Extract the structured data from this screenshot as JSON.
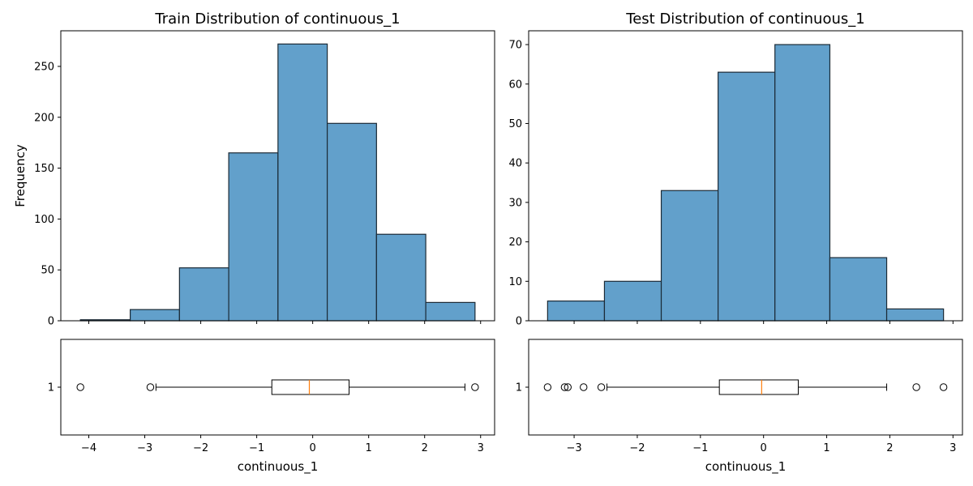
{
  "chart_data": [
    {
      "type": "bar",
      "panel": "top-left",
      "title": "Train Distribution of continuous_1",
      "ylabel": "Frequency",
      "xlabel": "",
      "bin_edges": [
        -4.15,
        -3.26,
        -2.38,
        -1.5,
        -0.62,
        0.26,
        1.14,
        2.02,
        2.9
      ],
      "values": [
        1,
        11,
        52,
        165,
        272,
        194,
        85,
        18
      ],
      "color": "#1f77b4",
      "xlim": [
        -4.5,
        3.25
      ],
      "ylim": [
        0,
        285
      ],
      "yticks": [
        0,
        50,
        100,
        150,
        200,
        250
      ],
      "grid": false
    },
    {
      "type": "bar",
      "panel": "top-right",
      "title": "Test Distribution of continuous_1",
      "xlabel": "",
      "ylabel": "",
      "bin_edges": [
        -3.42,
        -2.52,
        -1.62,
        -0.72,
        0.18,
        1.05,
        1.95,
        2.85
      ],
      "values": [
        5,
        10,
        33,
        63,
        70,
        16,
        3
      ],
      "color": "#1f77b4",
      "xlim": [
        -3.72,
        3.15
      ],
      "ylim": [
        0,
        73.5
      ],
      "yticks": [
        0,
        10,
        20,
        30,
        40,
        50,
        60,
        70
      ],
      "grid": false
    },
    {
      "type": "boxplot",
      "panel": "bottom-left",
      "xlabel": "continuous_1",
      "category": "1",
      "q1": -0.73,
      "median": -0.06,
      "q3": 0.65,
      "whisker_low": -2.8,
      "whisker_high": 2.72,
      "outliers": [
        -4.15,
        -2.9,
        2.9
      ],
      "xlim": [
        -4.5,
        3.25
      ],
      "xticks": [
        -4,
        -3,
        -2,
        -1,
        0,
        1,
        2,
        3
      ]
    },
    {
      "type": "boxplot",
      "panel": "bottom-right",
      "xlabel": "continuous_1",
      "category": "1",
      "q1": -0.7,
      "median": -0.03,
      "q3": 0.55,
      "whisker_low": -2.48,
      "whisker_high": 1.95,
      "outliers": [
        -3.42,
        -3.15,
        -3.1,
        -2.85,
        -2.57,
        2.42,
        2.85
      ],
      "xlim": [
        -3.72,
        3.15
      ],
      "xticks": [
        -3,
        -2,
        -1,
        0,
        1,
        2,
        3
      ]
    }
  ]
}
